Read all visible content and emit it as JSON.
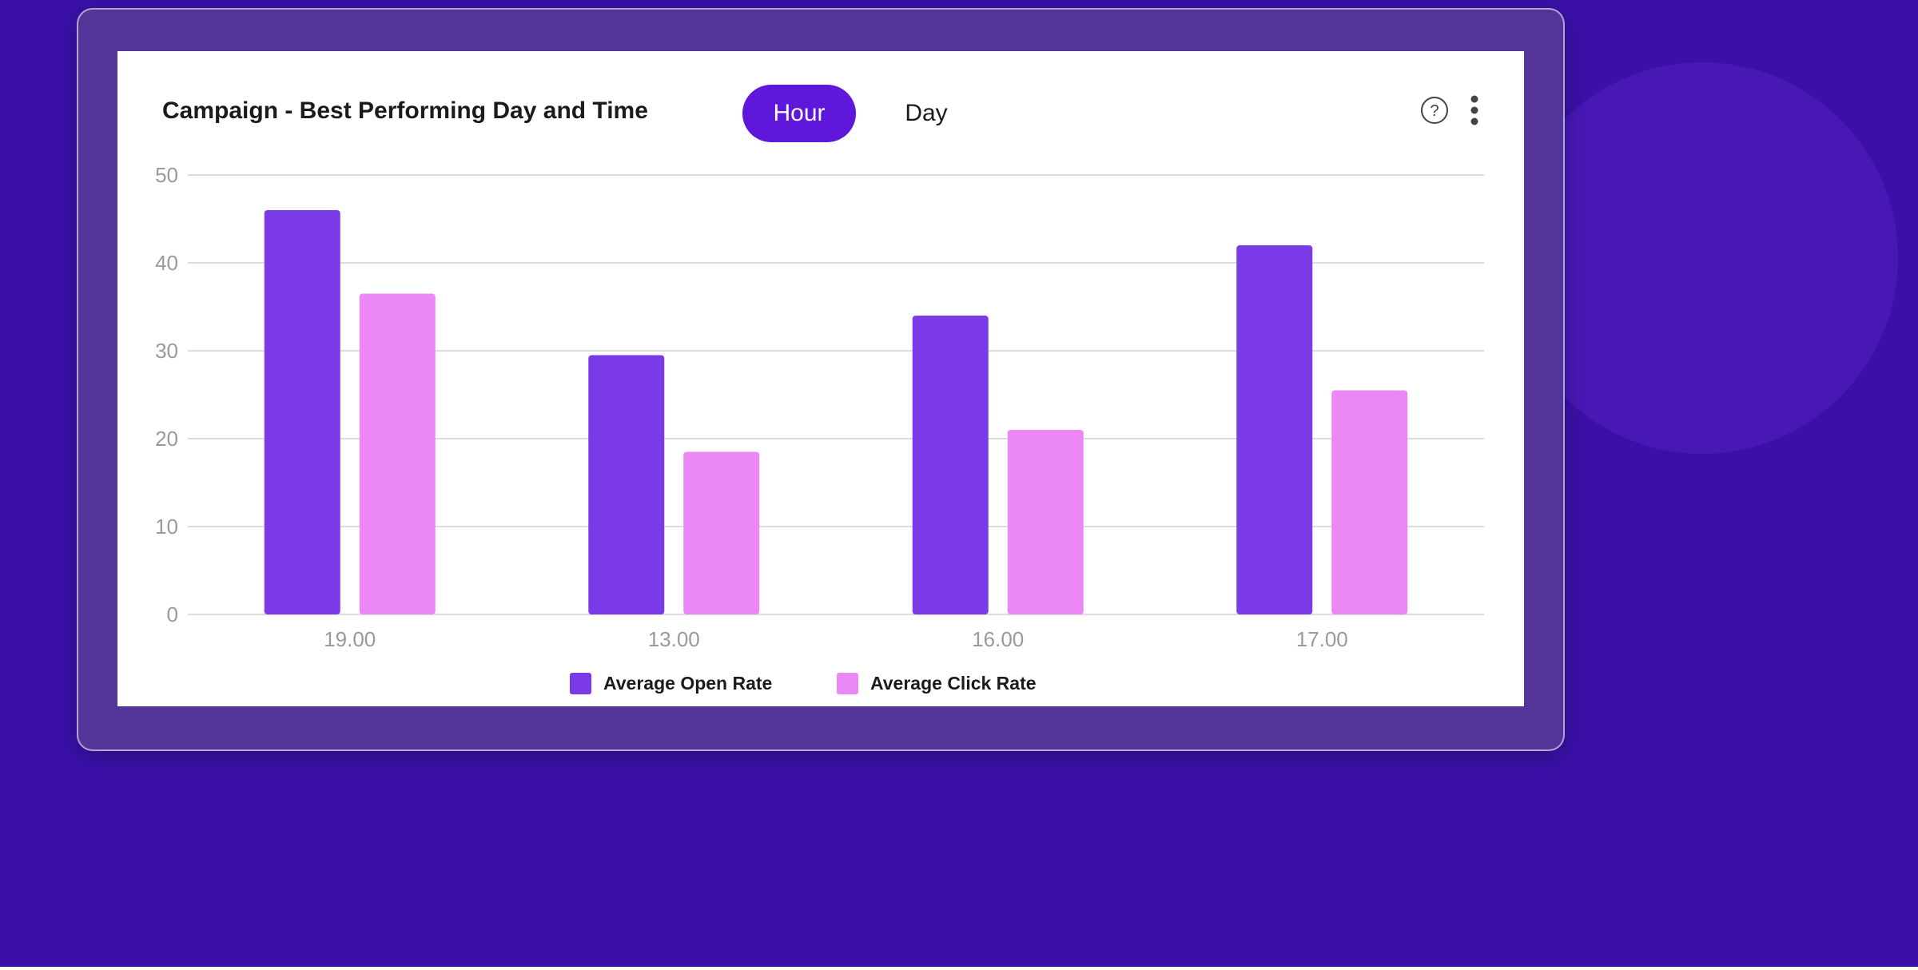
{
  "colors": {
    "background": "#3a10a8",
    "frame": "#533599",
    "card": "#ffffff",
    "accent": "#6017dc",
    "open_rate": "#7b3ae8",
    "click_rate": "#ec88f5",
    "gridline": "#dcdcdc",
    "tick_text": "#9a9a9a"
  },
  "header": {
    "title": "Campaign - Best Performing Day and Time",
    "toggle": [
      {
        "label": "Hour",
        "active": true
      },
      {
        "label": "Day",
        "active": false
      }
    ],
    "help_icon": "question-circle-icon",
    "menu_icon": "more-vertical-icon"
  },
  "chart_data": {
    "type": "bar",
    "title": "Campaign - Best Performing Day and Time",
    "xlabel": "",
    "ylabel": "",
    "categories": [
      "19.00",
      "13.00",
      "16.00",
      "17.00"
    ],
    "series": [
      {
        "name": "Average Open Rate",
        "values": [
          46,
          29.5,
          34,
          42
        ]
      },
      {
        "name": "Average Click Rate",
        "values": [
          36.5,
          18.5,
          21,
          25.5
        ]
      }
    ],
    "ylim": [
      0,
      50
    ],
    "yticks": [
      0,
      10,
      20,
      30,
      40,
      50
    ],
    "grid": true,
    "legend_position": "bottom-center"
  }
}
